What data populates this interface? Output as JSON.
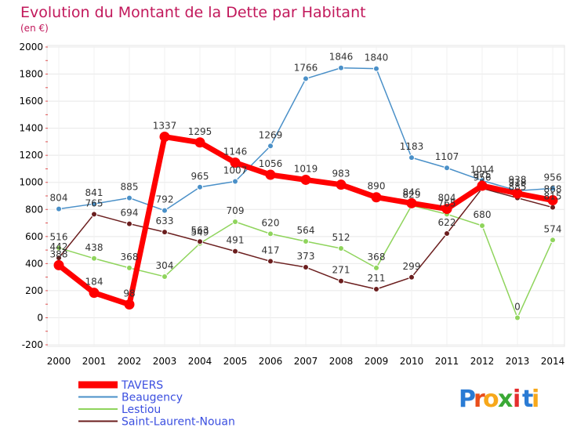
{
  "chart_data": {
    "type": "line",
    "title": "Evolution du Montant de la Dette par Habitant",
    "subtitle": "(en €)",
    "x": [
      "2000",
      "2001",
      "2002",
      "2003",
      "2004",
      "2005",
      "2006",
      "2007",
      "2008",
      "2009",
      "2010",
      "2011",
      "2012",
      "2013",
      "2014"
    ],
    "ylim": [
      -200,
      2000
    ],
    "yticks": [
      "-200",
      "0",
      "200",
      "400",
      "600",
      "800",
      "1000",
      "1200",
      "1400",
      "1600",
      "1800",
      "2000"
    ],
    "grid": true,
    "legend_position": "bottom-left",
    "series": [
      {
        "name": "TAVERS",
        "color": "#ff0000",
        "values": [
          388,
          184,
          98,
          1337,
          1295,
          1146,
          1056,
          1019,
          983,
          890,
          846,
          804,
          975,
          918,
          868
        ],
        "labels": [
          "388",
          "184",
          "98",
          "1337",
          "1295",
          "1146",
          "1056",
          "1019",
          "983",
          "890",
          "846",
          "804",
          "975",
          "918",
          "868"
        ]
      },
      {
        "name": "Beaugency",
        "color": "#4a90c8",
        "values": [
          804,
          841,
          885,
          792,
          965,
          1007,
          1269,
          1766,
          1846,
          1840,
          1183,
          1107,
          1014,
          938,
          956
        ],
        "labels": [
          "804",
          "841",
          "885",
          "792",
          "965",
          "1007",
          "1269",
          "1766",
          "1846",
          "1840",
          "1183",
          "1107",
          "1014",
          "938",
          "956"
        ]
      },
      {
        "name": "Lestiou",
        "color": "#8fd45c",
        "values": [
          516,
          438,
          368,
          304,
          549,
          709,
          620,
          564,
          512,
          368,
          829,
          765,
          680,
          0,
          574
        ],
        "labels": [
          "516",
          "438",
          "368",
          "304",
          "549",
          "709",
          "620",
          "564",
          "512",
          "368",
          "829",
          "765",
          "680",
          "0",
          "574"
        ]
      },
      {
        "name": "Saint-Laurent-Nouan",
        "color": "#6b1e1e",
        "values": [
          442,
          765,
          694,
          633,
          563,
          491,
          417,
          373,
          271,
          211,
          299,
          622,
          956,
          885,
          815
        ],
        "labels": [
          "442",
          "765",
          "694",
          "633",
          "563",
          "491",
          "417",
          "373",
          "271",
          "211",
          "299",
          "622",
          "956",
          "885",
          "815"
        ]
      }
    ]
  },
  "logo": {
    "letters": [
      "P",
      "r",
      "o",
      "x",
      "i",
      "t",
      "i"
    ],
    "colors": [
      "#2a7bd4",
      "#e94e1b",
      "#f7a81b",
      "#3aa935",
      "#e52d2d",
      "#2a7bd4",
      "#f7a81b"
    ]
  }
}
